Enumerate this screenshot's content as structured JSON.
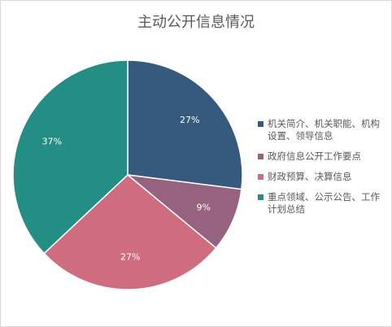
{
  "chart_data": {
    "type": "pie",
    "title": "主动公开信息情况",
    "categories": [
      "机关简介、机关职能、机构设置、领导信息",
      "政府信息公开工作要点",
      "财政预算、决算信息",
      "重点领域、公示公告、工作计划总结"
    ],
    "values": [
      27,
      9,
      27,
      37
    ],
    "value_labels": [
      "27%",
      "9%",
      "27%",
      "37%"
    ],
    "colors": [
      "#355A7E",
      "#97627F",
      "#D06C80",
      "#238F84"
    ],
    "legend_position": "right"
  }
}
